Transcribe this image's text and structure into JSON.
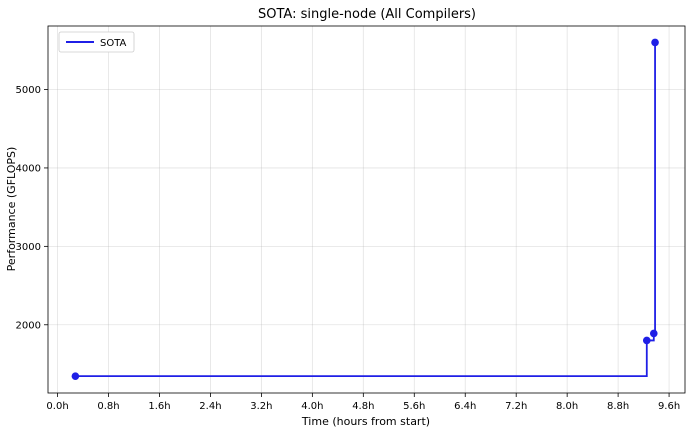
{
  "chart_data": {
    "type": "line",
    "title": "SOTA: single-node (All Compilers)",
    "xlabel": "Time (hours from start)",
    "ylabel": "Performance (GFLOPS)",
    "x_tick_values": [
      0.0,
      0.8,
      1.6,
      2.4,
      3.2,
      4.0,
      4.8,
      5.6,
      6.4,
      7.2,
      8.0,
      8.8,
      9.6
    ],
    "x_tick_labels": [
      "0.0h",
      "0.8h",
      "1.6h",
      "2.4h",
      "3.2h",
      "4.0h",
      "4.8h",
      "5.6h",
      "6.4h",
      "7.2h",
      "8.0h",
      "8.8h",
      "9.6h"
    ],
    "y_tick_values": [
      2000,
      3000,
      4000,
      5000
    ],
    "y_tick_labels": [
      "2000",
      "3000",
      "4000",
      "5000"
    ],
    "xlim": [
      -0.15,
      9.85
    ],
    "ylim": [
      1130,
      5810
    ],
    "grid": true,
    "legend_position": "top-left",
    "step": "post",
    "series": [
      {
        "name": "SOTA",
        "color": "#1f1fe6",
        "x": [
          0.28,
          9.25,
          9.36,
          9.38
        ],
        "y": [
          1345,
          1800,
          1890,
          5600
        ]
      }
    ]
  }
}
